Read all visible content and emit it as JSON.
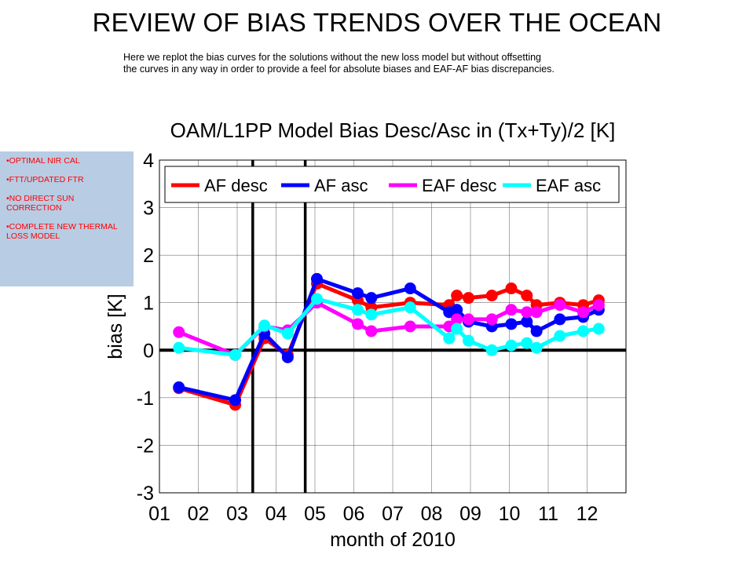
{
  "slide": {
    "title": "REVIEW OF BIAS TRENDS OVER THE OCEAN",
    "subtitle_line1": "Here we replot the bias curves for the solutions without the new loss model but without offsetting",
    "subtitle_line2": "the curves in any way in order to provide a feel for absolute biases and EAF-AF bias discrepancies."
  },
  "sidebar": {
    "notes": [
      "•OPTIMAL NIR CAL",
      "•FTT/UPDATED FTR",
      "•NO DIRECT SUN CORRECTION",
      "•COMPLETE NEW THERMAL LOSS MODEL"
    ]
  },
  "chart_data": {
    "type": "line",
    "title": "OAM/L1PP Model Bias Desc/Asc in (Tx+Ty)/2 [K]",
    "xlabel": "month of 2010",
    "ylabel": "bias [K]",
    "xlim": [
      1,
      13
    ],
    "ylim": [
      -3,
      4
    ],
    "x_ticks": [
      "01",
      "02",
      "03",
      "04",
      "05",
      "06",
      "07",
      "08",
      "09",
      "10",
      "11",
      "12"
    ],
    "y_ticks": [
      "4",
      "3",
      "2",
      "1",
      "0",
      "-1",
      "-2",
      "-3"
    ],
    "grid": true,
    "legend_position": "top",
    "zero_line": 0,
    "vertical_markers": [
      3.4,
      4.75
    ],
    "series": [
      {
        "name": "AF desc",
        "color": "#ff0000",
        "x": [
          1.5,
          2.95,
          3.7,
          4.3,
          5.05,
          6.1,
          6.45,
          7.45,
          8.45,
          8.65,
          8.95,
          9.55,
          10.05,
          10.45,
          10.7,
          11.3,
          11.9,
          12.3
        ],
        "y": [
          -0.8,
          -1.15,
          0.25,
          -0.1,
          1.4,
          1.05,
          0.9,
          1.0,
          0.95,
          1.15,
          1.1,
          1.15,
          1.3,
          1.15,
          0.95,
          1.0,
          0.95,
          1.05
        ]
      },
      {
        "name": "AF asc",
        "color": "#0000ff",
        "x": [
          1.5,
          2.95,
          3.7,
          4.3,
          5.05,
          6.1,
          6.45,
          7.45,
          8.45,
          8.65,
          8.95,
          9.55,
          10.05,
          10.45,
          10.7,
          11.3,
          11.9,
          12.3
        ],
        "y": [
          -0.78,
          -1.05,
          0.35,
          -0.15,
          1.5,
          1.2,
          1.1,
          1.3,
          0.8,
          0.85,
          0.6,
          0.5,
          0.55,
          0.6,
          0.4,
          0.65,
          0.7,
          0.85
        ]
      },
      {
        "name": "EAF desc",
        "color": "#ff00ff",
        "x": [
          1.5,
          2.95,
          3.7,
          4.3,
          5.05,
          6.1,
          6.45,
          7.45,
          8.45,
          8.65,
          8.95,
          9.55,
          10.05,
          10.45,
          10.7,
          11.3,
          11.9,
          12.3
        ],
        "y": [
          0.38,
          -0.1,
          0.5,
          0.42,
          1.0,
          0.55,
          0.4,
          0.5,
          0.5,
          0.65,
          0.65,
          0.65,
          0.85,
          0.8,
          0.8,
          0.95,
          0.8,
          0.95
        ]
      },
      {
        "name": "EAF asc",
        "color": "#00ffff",
        "x": [
          1.5,
          2.95,
          3.7,
          4.3,
          5.05,
          6.1,
          6.45,
          7.45,
          8.45,
          8.65,
          8.95,
          9.55,
          10.05,
          10.45,
          10.7,
          11.3,
          11.9,
          12.3
        ],
        "y": [
          0.05,
          -0.1,
          0.52,
          0.35,
          1.08,
          0.85,
          0.75,
          0.9,
          0.25,
          0.45,
          0.2,
          0.0,
          0.1,
          0.15,
          0.05,
          0.3,
          0.4,
          0.45
        ]
      }
    ]
  }
}
